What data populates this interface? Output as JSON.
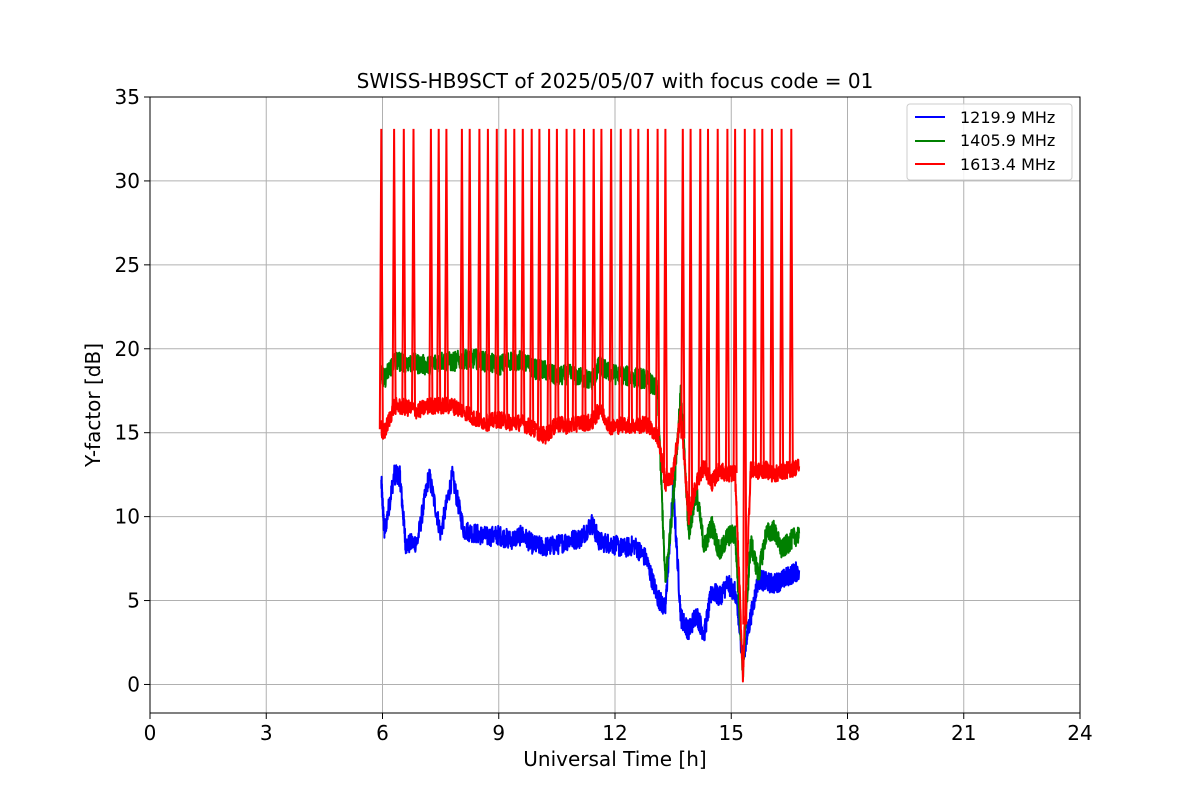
{
  "chart_data": {
    "type": "line",
    "title": "SWISS-HB9SCT of 2025/05/07 with focus code = 01",
    "xlabel": "Universal Time [h]",
    "ylabel": "Y-factor [dB]",
    "xlim": [
      0,
      24
    ],
    "ylim": [
      -1.7,
      35
    ],
    "xticks": [
      0,
      3,
      6,
      9,
      12,
      15,
      18,
      21,
      24
    ],
    "yticks": [
      0,
      5,
      10,
      15,
      20,
      25,
      30,
      35
    ],
    "grid": true,
    "legend_position": "top-right",
    "series": [
      {
        "name": "1219.9 MHz",
        "color": "#0000ff",
        "x": [
          5.97,
          6.05,
          6.3,
          6.45,
          6.6,
          6.9,
          7.2,
          7.5,
          7.8,
          8.1,
          8.4,
          8.7,
          9.0,
          9.3,
          9.6,
          9.9,
          10.2,
          10.5,
          10.8,
          11.1,
          11.4,
          11.6,
          11.9,
          12.2,
          12.5,
          12.8,
          13.1,
          13.3,
          13.5,
          13.7,
          13.9,
          14.1,
          14.3,
          14.5,
          14.7,
          14.9,
          15.1,
          15.3,
          15.5,
          15.7,
          15.9,
          16.1,
          16.3,
          16.5,
          16.75
        ],
        "y": [
          12.0,
          9.0,
          12.5,
          12.4,
          8.3,
          8.5,
          12.5,
          9.0,
          12.4,
          9.2,
          9.0,
          8.8,
          8.9,
          8.6,
          8.9,
          8.3,
          8.2,
          8.3,
          8.6,
          8.7,
          9.6,
          8.5,
          8.4,
          8.1,
          8.3,
          7.5,
          5.2,
          4.5,
          11.7,
          4.0,
          3.2,
          4.2,
          3.0,
          5.6,
          5.2,
          6.0,
          5.5,
          1.6,
          4.0,
          6.3,
          6.1,
          6.0,
          6.2,
          6.5,
          6.8
        ]
      },
      {
        "name": "1405.9 MHz",
        "color": "#008000",
        "x": [
          5.97,
          6.05,
          6.3,
          6.6,
          6.9,
          7.2,
          7.5,
          7.8,
          8.1,
          8.4,
          8.7,
          9.0,
          9.3,
          9.6,
          9.9,
          10.2,
          10.5,
          10.8,
          11.1,
          11.4,
          11.6,
          11.9,
          12.2,
          12.5,
          12.8,
          13.1,
          13.3,
          13.5,
          13.7,
          13.9,
          14.1,
          14.3,
          14.5,
          14.7,
          14.9,
          15.1,
          15.3,
          15.5,
          15.7,
          15.9,
          16.1,
          16.3,
          16.5,
          16.75
        ],
        "y": [
          18.5,
          18.2,
          19.3,
          19.2,
          19.1,
          19.0,
          19.3,
          19.2,
          19.4,
          19.4,
          19.2,
          19.0,
          19.3,
          19.3,
          18.8,
          18.7,
          18.3,
          18.5,
          18.3,
          18.1,
          19.0,
          18.5,
          18.4,
          18.3,
          18.2,
          17.5,
          6.0,
          11.0,
          17.4,
          9.0,
          11.5,
          8.2,
          9.5,
          7.8,
          8.8,
          9.0,
          0.8,
          8.5,
          6.5,
          9.0,
          9.2,
          8.0,
          8.5,
          9.0
        ]
      },
      {
        "name": "1613.4 MHz",
        "color": "#ff0000",
        "x": [
          5.97,
          6.05,
          6.3,
          6.6,
          6.9,
          7.2,
          7.5,
          7.8,
          8.1,
          8.4,
          8.7,
          9.0,
          9.3,
          9.6,
          9.9,
          10.2,
          10.5,
          10.8,
          11.1,
          11.4,
          11.6,
          11.9,
          12.2,
          12.5,
          12.8,
          13.1,
          13.3,
          13.5,
          13.7,
          13.9,
          14.1,
          14.3,
          14.5,
          14.7,
          14.9,
          15.1,
          15.3,
          15.5,
          15.7,
          15.9,
          16.1,
          16.3,
          16.5,
          16.75
        ],
        "y": [
          15.2,
          15.0,
          16.6,
          16.5,
          16.3,
          16.6,
          16.6,
          16.6,
          16.3,
          15.8,
          15.6,
          15.8,
          15.6,
          15.6,
          15.2,
          14.8,
          15.5,
          15.4,
          15.6,
          15.6,
          16.4,
          15.3,
          15.5,
          15.4,
          15.5,
          14.8,
          12.0,
          12.5,
          16.2,
          10.0,
          12.0,
          13.0,
          12.0,
          12.8,
          12.5,
          12.6,
          0.5,
          12.8,
          12.7,
          12.8,
          12.5,
          12.7,
          12.8,
          13.0
        ]
      }
    ],
    "spikes": {
      "series": "1613.4 MHz",
      "peak_value": 33.1,
      "x": [
        5.97,
        6.3,
        6.55,
        6.8,
        7.25,
        7.45,
        7.65,
        8.05,
        8.25,
        8.5,
        8.72,
        8.95,
        9.18,
        9.4,
        9.62,
        9.85,
        10.05,
        10.3,
        10.5,
        10.75,
        10.95,
        11.2,
        11.45,
        11.65,
        11.9,
        12.15,
        12.4,
        12.6,
        12.85,
        13.1,
        13.3,
        13.75,
        13.95,
        14.2,
        14.4,
        14.65,
        14.9,
        15.1,
        15.35,
        15.6,
        15.8,
        16.05,
        16.3,
        16.55
      ]
    }
  }
}
